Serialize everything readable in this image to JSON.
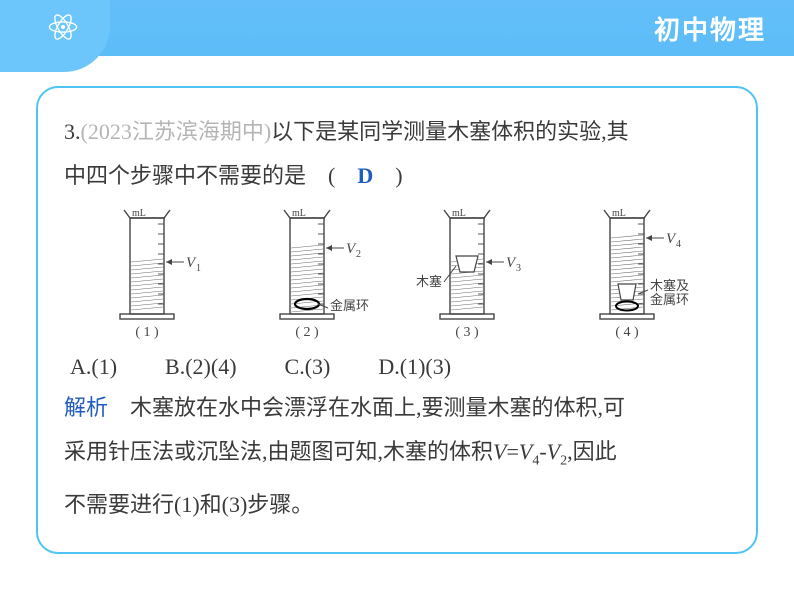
{
  "header": {
    "title": "初中物理"
  },
  "question": {
    "number": "3.",
    "source": "(2023江苏滨海期中)",
    "text_a": "以下是某同学测量木塞体积的实验,其",
    "text_b": "中四个步骤中不需要的是　(　",
    "text_c": "　)",
    "answer": "D"
  },
  "diagram": {
    "unit_label": "mL",
    "cylinders": [
      {
        "caption": "( 1 )",
        "marker": "V",
        "marker_sub": "1",
        "extra": null,
        "water_h": 48,
        "obj": null
      },
      {
        "caption": "( 2 )",
        "marker": "V",
        "marker_sub": "2",
        "extra": "金属环",
        "water_h": 62,
        "obj": "ring"
      },
      {
        "caption": "( 3 )",
        "marker": "V",
        "marker_sub": "3",
        "extra": "木塞",
        "water_h": 48,
        "obj": "float"
      },
      {
        "caption": "( 4 )",
        "marker": "V",
        "marker_sub": "4",
        "extra": "木塞及\n金属环",
        "water_h": 72,
        "obj": "both"
      }
    ],
    "colors": {
      "stroke": "#454545",
      "water_fill": "#f2f2f2",
      "hatch": "#6b6b6b",
      "text": "#454545"
    }
  },
  "options": {
    "A": "A.(1)",
    "B": "B.(2)(4)",
    "C": "C.(3)",
    "D": "D.(1)(3)"
  },
  "explanation": {
    "label": "解析",
    "line1": "　木塞放在水中会漂浮在水面上,要测量木塞的体积,可",
    "line2a": "采用针压法或沉坠法,由题图可知,木塞的体积",
    "eq_v": "V",
    "eq_eq": "=",
    "eq_v4": "V",
    "eq_sub4": "4",
    "eq_minus": "-",
    "eq_v2": "V",
    "eq_sub2": "2",
    "line2b": ",因此",
    "line3": "不需要进行(1)和(3)步骤。"
  },
  "style": {
    "header_bg": "#5cbdf7",
    "header_text": "#ffffff",
    "card_border": "#4fc4f2",
    "body_text": "#3a3a3a",
    "source_text": "#b5b5b5",
    "accent_blue": "#1f5dc0"
  }
}
